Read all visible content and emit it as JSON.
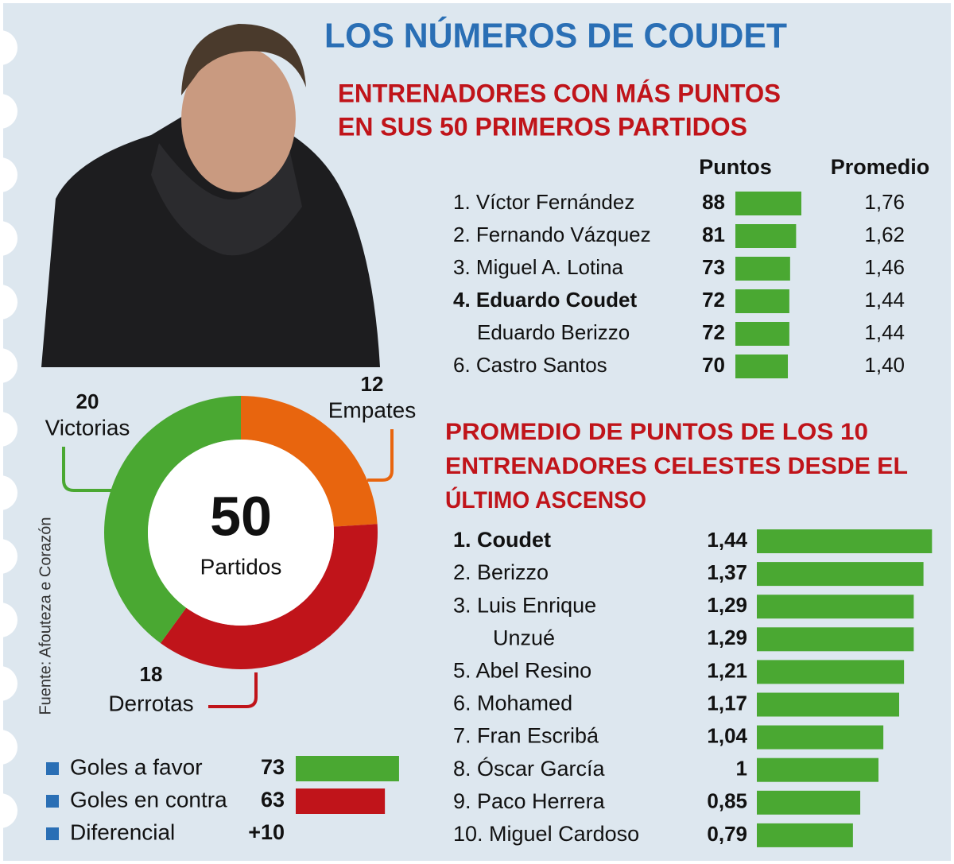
{
  "title": "LOS NÚMEROS DE COUDET",
  "source": "Fuente: Afouteza e Corazón",
  "chart_data": [
    {
      "type": "bar",
      "title": [
        "ENTRENADORES CON MÁS PUNTOS",
        "EN SUS 50 PRIMEROS PARTIDOS"
      ],
      "categories": [
        "1. Víctor Fernández",
        "2. Fernando Vázquez",
        "3. Miguel A. Lotina",
        "4. Eduardo Coudet",
        "Eduardo Berizzo",
        "6. Castro Santos"
      ],
      "bold_rows": [
        3
      ],
      "series": [
        {
          "name": "Puntos",
          "color": "#4aa832",
          "values": [
            88,
            81,
            73,
            72,
            72,
            70
          ]
        },
        {
          "name": "Promedio",
          "values": [
            1.76,
            1.62,
            1.46,
            1.44,
            1.44,
            1.4
          ],
          "value_labels": [
            "1,76",
            "1,62",
            "1,46",
            "1,44",
            "1,44",
            "1,40"
          ]
        }
      ]
    },
    {
      "type": "donut",
      "center_value": 50,
      "center_label": "Partidos",
      "categories": [
        "Empates",
        "Derrotas",
        "Victorias"
      ],
      "values": [
        12,
        18,
        20
      ],
      "colors": [
        "#e8650e",
        "#c0141a",
        "#4aa832"
      ]
    },
    {
      "type": "bar",
      "categories": [
        "Goles a favor",
        "Goles en contra",
        "Diferencial"
      ],
      "values": [
        73,
        63,
        10
      ],
      "value_labels": [
        "73",
        "63",
        "+10"
      ],
      "colors": [
        "#4aa832",
        "#c0141a",
        null
      ],
      "marker_color": "#2a6fb5"
    },
    {
      "type": "bar",
      "title": [
        "PROMEDIO DE PUNTOS DE LOS 10",
        "ENTRENADORES CELESTES DESDE EL",
        "ÚLTIMO ASCENSO"
      ],
      "categories": [
        "1. Coudet",
        "2. Berizzo",
        "3. Luis Enrique",
        "Unzué",
        "5. Abel Resino",
        "6. Mohamed",
        "7. Fran Escribá",
        "8. Óscar García",
        "9. Paco Herrera",
        "10. Miguel Cardoso"
      ],
      "bold_rows": [
        0
      ],
      "values": [
        1.44,
        1.37,
        1.29,
        1.29,
        1.21,
        1.17,
        1.04,
        1,
        0.85,
        0.79
      ],
      "value_labels": [
        "1,44",
        "1,37",
        "1,29",
        "1,29",
        "1,21",
        "1,17",
        "1,04",
        "1",
        "0,85",
        "0,79"
      ],
      "color": "#4aa832"
    }
  ]
}
